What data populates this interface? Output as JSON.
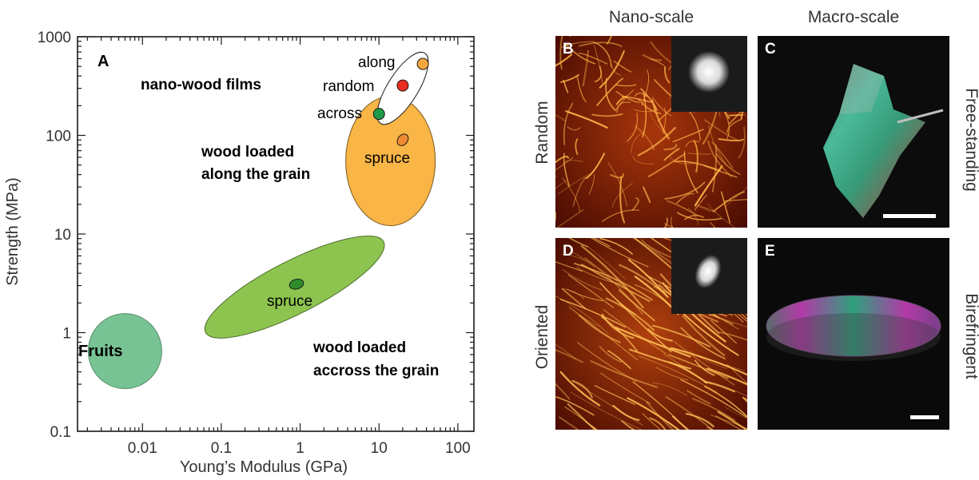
{
  "chart_data": {
    "type": "scatter",
    "panel_label": "A",
    "xlabel": "Young’s Modulus (GPa)",
    "ylabel": "Strength (MPa)",
    "xscale": "log",
    "yscale": "log",
    "xlim": [
      0.0015,
      160
    ],
    "ylim": [
      0.1,
      1000
    ],
    "xticks": [
      0.01,
      0.1,
      1,
      10,
      100
    ],
    "xtick_labels": [
      "0.01",
      "0.1",
      "1",
      "10",
      "100"
    ],
    "yticks": [
      0.1,
      1,
      10,
      100,
      1000
    ],
    "ytick_labels": [
      "0.1",
      "1",
      "10",
      "100",
      "1000"
    ],
    "grid": false,
    "regions": [
      {
        "label": "Fruits",
        "cx": 0.006,
        "cy": 0.65,
        "color": "#77c394",
        "stroke": "#5b8f6a"
      },
      {
        "label": "wood loaded accross the grain",
        "cx": 0.85,
        "cy": 2.9,
        "color": "#8dc450",
        "stroke": "#4d6b2a"
      },
      {
        "label": "wood loaded along the grain",
        "cx": 14,
        "cy": 55,
        "color": "#f9b546",
        "stroke": "#7a5a1f"
      },
      {
        "label": "nano-wood films",
        "cx": 20,
        "cy": 300,
        "color": "#ffffff",
        "stroke": "#1a1a1a"
      }
    ],
    "points": [
      {
        "label": "spruce",
        "x": 0.9,
        "y": 3.1,
        "color": "#2f8c2a"
      },
      {
        "label": "spruce",
        "x": 20,
        "y": 90,
        "color": "#f08b34"
      },
      {
        "label": "along",
        "x": 36,
        "y": 530,
        "color": "#f7a73e"
      },
      {
        "label": "random",
        "x": 20,
        "y": 320,
        "color": "#ea2e22"
      },
      {
        "label": "across",
        "x": 10,
        "y": 165,
        "color": "#1f9a49"
      }
    ],
    "annotations": [
      "nano-wood films",
      "along",
      "random",
      "across",
      "wood loaded",
      "along the grain",
      "spruce",
      "spruce",
      "wood loaded",
      "accross the grain",
      "Fruits"
    ]
  },
  "image_panels": {
    "col_headers": [
      "Nano-scale",
      "Macro-scale"
    ],
    "row_labels_left": [
      "Random",
      "Oriented"
    ],
    "row_labels_right": [
      "Free-standing",
      "Birefringent"
    ],
    "panels": [
      {
        "letter": "B",
        "kind": "afm-random",
        "has_inset": true
      },
      {
        "letter": "C",
        "kind": "film-photo",
        "has_scalebar": true
      },
      {
        "letter": "D",
        "kind": "afm-oriented",
        "has_inset": true
      },
      {
        "letter": "E",
        "kind": "birefringent-disc",
        "has_scalebar": true
      }
    ]
  }
}
